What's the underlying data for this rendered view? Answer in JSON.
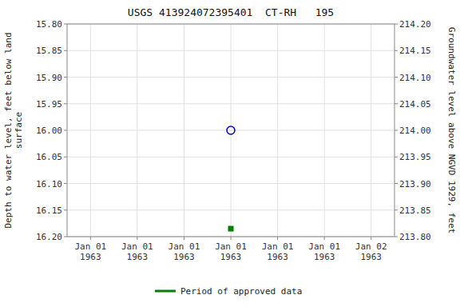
{
  "chart_data": {
    "type": "scatter",
    "title": "USGS 413924072395401  CT-RH   195",
    "y_label": "Depth to water level, feet below land\nsurface",
    "y2_label": "Groundwater level above NGVD 1929, feet",
    "categories": [
      "Jan 01\n1963",
      "Jan 01\n1963",
      "Jan 01\n1963",
      "Jan 01\n1963",
      "Jan 01\n1963",
      "Jan 01\n1963",
      "Jan 02\n1963"
    ],
    "series": [
      {
        "color": "#0000cc",
        "marker": "circle",
        "values": [
          null,
          null,
          null,
          16.0,
          null,
          null,
          null
        ]
      },
      {
        "name": "Period of approved data",
        "color": "#008000",
        "marker": "square",
        "values": [
          null,
          null,
          null,
          16.185,
          null,
          null,
          null
        ]
      }
    ],
    "ylim": [
      16.2,
      15.8
    ],
    "yticks": [
      {
        "value": 15.8,
        "label": "15.80"
      },
      15.85,
      {
        "value": 15.9,
        "label": "15.90"
      },
      15.95,
      {
        "value": 16.0,
        "label": "16.00"
      },
      16.05,
      {
        "value": 16.1,
        "label": "16.10"
      },
      16.15,
      {
        "value": 16.2,
        "label": "16.20"
      }
    ],
    "y2lim": [
      213.8,
      214.2
    ],
    "y2ticks": [
      {
        "value": 214.2,
        "label": "214.20"
      },
      214.15,
      {
        "value": 214.1,
        "label": "214.10"
      },
      214.05,
      {
        "value": 214.0,
        "label": "214.00"
      },
      213.95,
      {
        "value": 213.9,
        "label": "213.90"
      },
      213.85,
      {
        "value": 213.8,
        "label": "213.80"
      }
    ],
    "grid": true,
    "legend": "bottom"
  }
}
